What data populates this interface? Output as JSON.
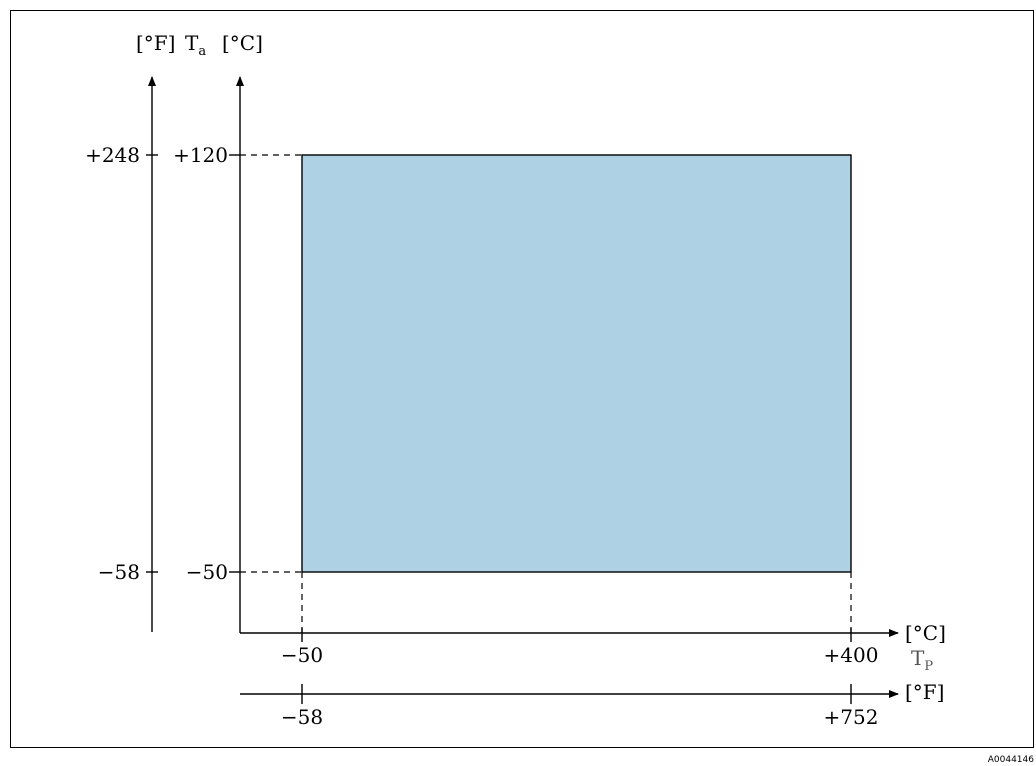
{
  "chart_data": {
    "type": "area",
    "region": {
      "tp_celsius": [
        -50,
        400
      ],
      "ta_celsius": [
        -50,
        120
      ],
      "fill_color": "#aed2e4"
    },
    "y_axis": {
      "symbol": "T",
      "symbol_sub": "a",
      "unit_left": "[°F]",
      "unit_right": "[°C]",
      "ticks_celsius": [
        {
          "value": 120,
          "label": "+120"
        },
        {
          "value": -50,
          "label": "−50"
        }
      ],
      "ticks_fahrenheit": [
        {
          "value": 248,
          "label": "+248"
        },
        {
          "value": -58,
          "label": "−58"
        }
      ]
    },
    "x_axis": {
      "symbol": "T",
      "symbol_sub": "P",
      "unit_top": "[°C]",
      "unit_bottom": "[°F]",
      "ticks_celsius": [
        {
          "value": -50,
          "label": "−50"
        },
        {
          "value": 400,
          "label": "+400"
        }
      ],
      "ticks_fahrenheit": [
        {
          "value": -58,
          "label": "−58"
        },
        {
          "value": 752,
          "label": "+752"
        }
      ]
    },
    "figure_code": "A0044146"
  }
}
